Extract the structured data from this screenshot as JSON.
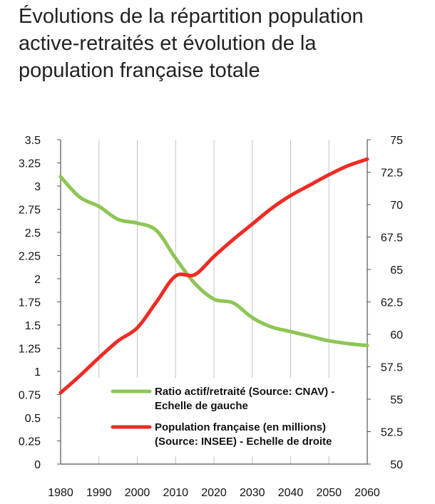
{
  "title_lines": [
    "Évolutions de la répartition population",
    "active-retraités et évolution de la",
    "population française totale"
  ],
  "chart_data": {
    "type": "line",
    "x_ticks": [
      1980,
      1990,
      2000,
      2010,
      2020,
      2030,
      2040,
      2050,
      2060
    ],
    "y_left": {
      "ticks": [
        "0",
        "0.25",
        "0.5",
        "0.75",
        "1",
        "1.25",
        "1.5",
        "1.75",
        "2",
        "2.25",
        "2.5",
        "2.75",
        "3",
        "3.25",
        "3.5"
      ],
      "range": [
        0,
        3.5
      ]
    },
    "y_right": {
      "ticks": [
        "50",
        "52.5",
        "55",
        "57.5",
        "60",
        "62.5",
        "65",
        "67.5",
        "70",
        "72.5",
        "75"
      ],
      "range": [
        50,
        75
      ]
    },
    "xlim": [
      1980,
      2060
    ],
    "grid": "vertical",
    "legend_position": "bottom-right",
    "series": [
      {
        "name_lines": [
          "Ratio actif/retraité (Source: CNAV) -",
          "Echelle de gauche"
        ],
        "axis": "left",
        "color": "#8dc655",
        "x": [
          1980,
          1985,
          1990,
          1995,
          2000,
          2005,
          2010,
          2015,
          2020,
          2025,
          2030,
          2035,
          2040,
          2045,
          2050,
          2055,
          2060
        ],
        "y": [
          3.1,
          2.88,
          2.78,
          2.64,
          2.6,
          2.52,
          2.22,
          1.95,
          1.78,
          1.74,
          1.58,
          1.48,
          1.43,
          1.38,
          1.33,
          1.3,
          1.28
        ]
      },
      {
        "name_lines": [
          "Population française (en millions)",
          "(Source: INSEE) - Echelle de droite"
        ],
        "axis": "right",
        "color": "#ee2b24",
        "x": [
          1980,
          1985,
          1990,
          1995,
          2000,
          2005,
          2010,
          2015,
          2020,
          2025,
          2030,
          2035,
          2040,
          2045,
          2050,
          2055,
          2060
        ],
        "y": [
          55.5,
          56.8,
          58.2,
          59.5,
          60.5,
          62.5,
          64.5,
          64.6,
          66.0,
          67.3,
          68.5,
          69.7,
          70.7,
          71.5,
          72.3,
          73.0,
          73.5
        ]
      }
    ]
  }
}
